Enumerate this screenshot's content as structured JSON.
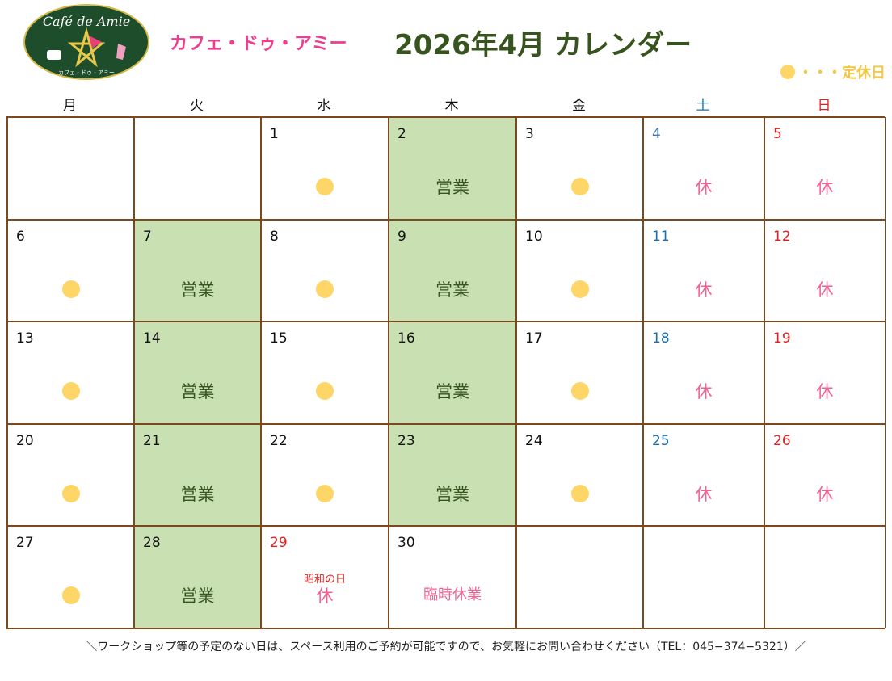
{
  "header": {
    "logo_text": "Café de Amie",
    "logo_sub": "カフェ・ドゥ・アミー",
    "brand": "カフェ・ドゥ・アミー",
    "title": "2026年4月  カレンダー",
    "legend": "・・・定休日"
  },
  "colors": {
    "open_bg": "#c8e0b2",
    "dot": "#fdd667",
    "closed": "#f06292",
    "saturday": "#1a6faf",
    "sunday": "#e02020",
    "border": "#7a4a1e"
  },
  "weekdays": [
    {
      "label": "月",
      "color": "#111"
    },
    {
      "label": "火",
      "color": "#111"
    },
    {
      "label": "水",
      "color": "#111"
    },
    {
      "label": "木",
      "color": "#111"
    },
    {
      "label": "金",
      "color": "#111"
    },
    {
      "label": "土",
      "color": "#1a6faf"
    },
    {
      "label": "日",
      "color": "#e02020"
    }
  ],
  "labels": {
    "open": "営業",
    "closed": "休",
    "special": "臨時休業"
  },
  "cells": [
    {
      "day": "",
      "type": "empty"
    },
    {
      "day": "",
      "type": "empty"
    },
    {
      "day": "1",
      "type": "dot"
    },
    {
      "day": "2",
      "type": "open"
    },
    {
      "day": "3",
      "type": "dot"
    },
    {
      "day": "4",
      "type": "closed",
      "color": "#4a7ab0"
    },
    {
      "day": "5",
      "type": "closed",
      "color": "#e02020"
    },
    {
      "day": "6",
      "type": "dot"
    },
    {
      "day": "7",
      "type": "open"
    },
    {
      "day": "8",
      "type": "dot"
    },
    {
      "day": "9",
      "type": "open"
    },
    {
      "day": "10",
      "type": "dot"
    },
    {
      "day": "11",
      "type": "closed",
      "color": "#1a6faf"
    },
    {
      "day": "12",
      "type": "closed",
      "color": "#e02020"
    },
    {
      "day": "13",
      "type": "dot"
    },
    {
      "day": "14",
      "type": "open"
    },
    {
      "day": "15",
      "type": "dot"
    },
    {
      "day": "16",
      "type": "open"
    },
    {
      "day": "17",
      "type": "dot"
    },
    {
      "day": "18",
      "type": "closed",
      "color": "#1a6faf"
    },
    {
      "day": "19",
      "type": "closed",
      "color": "#e02020"
    },
    {
      "day": "20",
      "type": "dot"
    },
    {
      "day": "21",
      "type": "open"
    },
    {
      "day": "22",
      "type": "dot"
    },
    {
      "day": "23",
      "type": "open"
    },
    {
      "day": "24",
      "type": "dot"
    },
    {
      "day": "25",
      "type": "closed",
      "color": "#1a6faf"
    },
    {
      "day": "26",
      "type": "closed",
      "color": "#e02020"
    },
    {
      "day": "27",
      "type": "dot"
    },
    {
      "day": "28",
      "type": "open"
    },
    {
      "day": "29",
      "type": "closed",
      "color": "#e02020",
      "note": "昭和の日"
    },
    {
      "day": "30",
      "type": "special"
    },
    {
      "day": "",
      "type": "empty"
    },
    {
      "day": "",
      "type": "empty"
    },
    {
      "day": "",
      "type": "empty"
    }
  ],
  "footer": "＼ワークショップ等の予定のない日は、スペース利用のご予約が可能ですので、お気軽にお問い合わせください（TEL：045−374−5321）／"
}
